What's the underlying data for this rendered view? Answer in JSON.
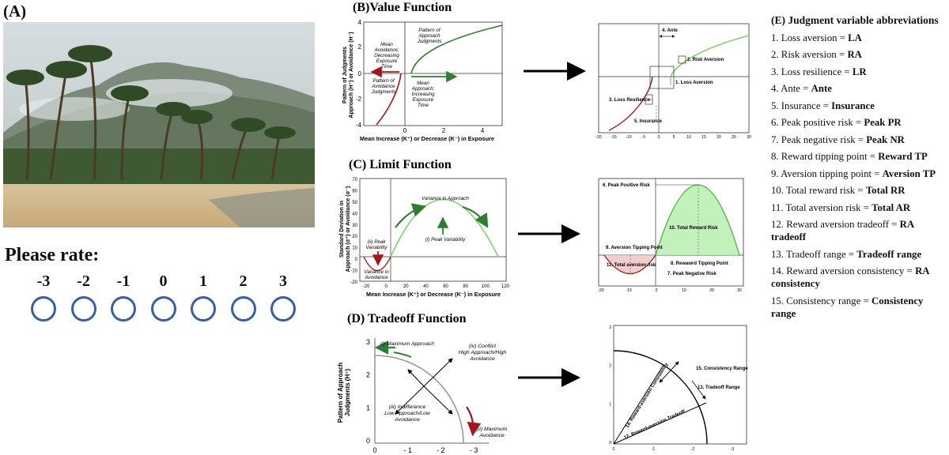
{
  "panelA": {
    "label": "(A)",
    "rate_label": "Please rate:",
    "rating_options": [
      "-3",
      "-2",
      "-1",
      "0",
      "1",
      "2",
      "3"
    ]
  },
  "panelB": {
    "title": "(B)Value Function",
    "ylabel_line1": "Pattern of Judgments",
    "ylabel_line2": "Approach (H⁺) or Avoidance (H⁻)",
    "xlabel": "Mean Increase (K⁺) or Decrease (K⁻) in Exposure",
    "yticks": [
      "4",
      "2",
      "0",
      "-2",
      "-4"
    ],
    "xticks": [
      "0",
      "2",
      "4"
    ],
    "ann_avoid_time": [
      "Mean",
      "Avoidance;",
      "Decreasing",
      "Exposure",
      "Time"
    ],
    "ann_approach_pattern": [
      "Pattern of",
      "Approach",
      "Judgments"
    ],
    "ann_avoid_pattern": [
      "Pattern of",
      "Avoidance",
      "Judgments"
    ],
    "ann_approach_time": [
      "Mean",
      "Approach;",
      "Increasing",
      "Exposure",
      "Time"
    ],
    "right": {
      "labels": {
        "ante": "4. Ante",
        "risk_aversion": "2. Risk Aversion",
        "loss_aversion": "1. Loss Aversion",
        "loss_resilience": "3. Loss Resilience",
        "insurance": "5. Insurance"
      },
      "xticks": [
        "-20",
        "-15",
        "-10",
        "-5",
        "0",
        "5",
        "10",
        "15",
        "20",
        "25",
        "30"
      ]
    }
  },
  "panelC": {
    "title": "(C) Limit Function",
    "ylabel_line1": "Standard Deviation in",
    "ylabel_line2": "Approach (σ⁺) or Avoidance (σ⁻)",
    "xlabel": "Mean Increase (K⁺) or Decrease (K⁻) in Exposure",
    "yticks": [
      "70",
      "60",
      "50",
      "40",
      "30",
      "20",
      "10",
      "0",
      "-10",
      "-20"
    ],
    "xticks": [
      "-20",
      "0",
      "20",
      "40",
      "60",
      "80",
      "100",
      "120"
    ],
    "ann_variance_approach": "Variance in Approach",
    "ann_peak_variability": "(i) Peak Variability",
    "ann_ii_peak": [
      "(ii) Peak",
      "Variability"
    ],
    "ann_variance_avoidance": [
      "Variance in",
      "Avoidance"
    ],
    "right": {
      "labels": {
        "peak_pos": "6. Peak Positive Risk",
        "total_reward": "10. Total Reward Risk",
        "aversion_tp": "9. Aversion Tipping Point",
        "total_aversion": "11. Total aversion risk",
        "reward_tp": "8. Rewawrd Tipping Point",
        "peak_neg": "7. Peak Negative Risk"
      },
      "xticks": [
        "-20",
        "-10",
        "0",
        "10",
        "20",
        "30"
      ]
    }
  },
  "panelD": {
    "title": "(D) Tradeoff Function",
    "ylabel_line1": "Pattern of Approach",
    "ylabel_line2": "Judgments (H⁺)",
    "yticks": [
      "3",
      "2",
      "1",
      "0"
    ],
    "xticks": [
      "0",
      "- 1",
      "- 2",
      "- 3"
    ],
    "ann_max_approach": "(i) Maximum Approach",
    "ann_conflict": [
      "(iv) Conflict",
      "High Approach/High",
      "Avoidance"
    ],
    "ann_indifference": [
      "(iii) Indifference",
      "Low Approach/Low",
      "Avoidance"
    ],
    "ann_max_avoidance": [
      "(ii) Maximum",
      "Avoidance"
    ],
    "right": {
      "labels": {
        "consistency_range": "15. Consistency Range",
        "tradeoff_range": "13. Tradeoff Range",
        "ra_consistency": "14. Reward-aversion Consistency",
        "ra_tradeoff": "12. Reward-aversion Tradeoff"
      },
      "yticks": [
        "3",
        "2",
        "1",
        "0"
      ],
      "xticks": [
        "0",
        "-1",
        "-2",
        "-3"
      ]
    }
  },
  "legend": {
    "title": "(E) Judgment variable abbreviations",
    "items": [
      {
        "text": "1. Loss aversion = ",
        "abbr": "LA"
      },
      {
        "text": "2. Risk aversion = ",
        "abbr": "RA"
      },
      {
        "text": "3. Loss resilience = ",
        "abbr": "LR"
      },
      {
        "text": "4. Ante = ",
        "abbr": "Ante"
      },
      {
        "text": "5. Insurance = ",
        "abbr": "Insurance"
      },
      {
        "text": "6. Peak positive risk = ",
        "abbr": "Peak PR"
      },
      {
        "text": "7. Peak negative risk = ",
        "abbr": "Peak NR"
      },
      {
        "text": "8. Reward tipping point = ",
        "abbr": "Reward TP"
      },
      {
        "text": "9. Aversion tipping point = ",
        "abbr": "Aversion TP"
      },
      {
        "text": "10. Total reward risk = ",
        "abbr": "Total RR"
      },
      {
        "text": "11. Total aversion risk = ",
        "abbr": "Total AR"
      },
      {
        "text": "12. Reward aversion tradeoff = ",
        "abbr": "RA tradeoff"
      },
      {
        "text": "13. Tradeoff range = ",
        "abbr": "Tradeoff range"
      },
      {
        "text": "14. Reward aversion consistency = ",
        "abbr": "RA consistency"
      },
      {
        "text": "15. Consistency range = ",
        "abbr": "Consistency range"
      }
    ]
  },
  "colors": {
    "approach_dark": "#2e7d32",
    "approach_light": "#7fd36a",
    "avoid": "#a01818",
    "circle": "#3a5ea3",
    "arrow": "#000000"
  }
}
